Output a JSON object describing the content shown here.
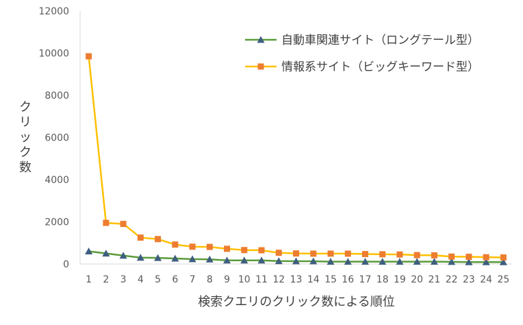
{
  "chart_data": {
    "type": "line",
    "title": "",
    "xlabel": "検索クエリのクリック数による順位",
    "ylabel": "クリック数",
    "x": [
      1,
      2,
      3,
      4,
      5,
      6,
      7,
      8,
      9,
      10,
      11,
      12,
      13,
      14,
      15,
      16,
      17,
      18,
      19,
      20,
      21,
      22,
      23,
      24,
      25
    ],
    "ylim": [
      0,
      12000
    ],
    "yticks": [
      0,
      2000,
      4000,
      6000,
      8000,
      10000,
      12000
    ],
    "grid": false,
    "legend_position": "top-right",
    "series": [
      {
        "name": "自動車関連サイト（ロングテール型）",
        "color": "#5a9b3a",
        "marker": "triangle",
        "marker_color": "#3f5f7f",
        "values": [
          600,
          500,
          400,
          300,
          290,
          260,
          230,
          220,
          170,
          170,
          170,
          140,
          130,
          130,
          110,
          110,
          110,
          110,
          110,
          110,
          110,
          100,
          90,
          90,
          90
        ]
      },
      {
        "name": "情報系サイト（ビッグキーワード型）",
        "color": "#ffc000",
        "marker": "square",
        "marker_color": "#ed7d31",
        "values": [
          9850,
          1950,
          1900,
          1250,
          1180,
          920,
          820,
          810,
          720,
          660,
          650,
          530,
          500,
          490,
          490,
          490,
          470,
          460,
          450,
          420,
          410,
          350,
          340,
          320,
          310
        ]
      }
    ]
  }
}
